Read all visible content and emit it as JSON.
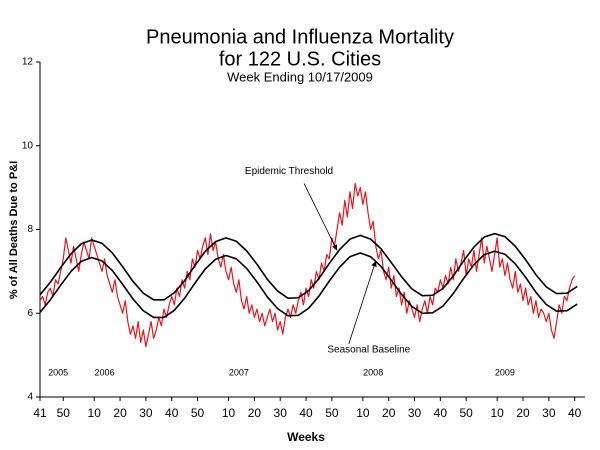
{
  "chart_data": {
    "type": "line",
    "title": [
      "Pneumonia and Influenza Mortality",
      "for 122 U.S. Cities"
    ],
    "subtitle": "Week Ending 10/17/2009",
    "y_label": "% of All Deaths Due to P&I",
    "x_label": "Weeks",
    "xlim": [
      0,
      211
    ],
    "ylim": [
      4,
      12
    ],
    "yticks": [
      4,
      6,
      8,
      10,
      12
    ],
    "xticks": [
      {
        "value": 0,
        "label": "41"
      },
      {
        "value": 9,
        "label": "50"
      },
      {
        "value": 21,
        "label": "10"
      },
      {
        "value": 31,
        "label": "20"
      },
      {
        "value": 41,
        "label": "30"
      },
      {
        "value": 51,
        "label": "40"
      },
      {
        "value": 61,
        "label": "50"
      },
      {
        "value": 73,
        "label": "10"
      },
      {
        "value": 83,
        "label": "20"
      },
      {
        "value": 93,
        "label": "30"
      },
      {
        "value": 103,
        "label": "40"
      },
      {
        "value": 113,
        "label": "50"
      },
      {
        "value": 125,
        "label": "10"
      },
      {
        "value": 135,
        "label": "20"
      },
      {
        "value": 145,
        "label": "30"
      },
      {
        "value": 155,
        "label": "40"
      },
      {
        "value": 165,
        "label": "50"
      },
      {
        "value": 177,
        "label": "10"
      },
      {
        "value": 187,
        "label": "20"
      },
      {
        "value": 197,
        "label": "30"
      },
      {
        "value": 207,
        "label": "40"
      }
    ],
    "year_labels": [
      {
        "text": "2005",
        "x": 7
      },
      {
        "text": "2006",
        "x": 25
      },
      {
        "text": "2007",
        "x": 77
      },
      {
        "text": "2008",
        "x": 129
      },
      {
        "text": "2009",
        "x": 180
      }
    ],
    "annotations": [
      {
        "text": "Epidemic Threshold",
        "x": 115,
        "y": 7.5,
        "side": "above"
      },
      {
        "text": "Seasonal Baseline",
        "x": 130,
        "y": 7.25,
        "side": "below"
      }
    ],
    "series": [
      {
        "color": "#e8141b",
        "x": [
          0,
          1,
          2,
          3,
          4,
          5,
          6,
          7,
          8,
          9,
          10,
          11,
          12,
          13,
          14,
          15,
          16,
          17,
          18,
          19,
          20,
          21,
          22,
          23,
          24,
          25,
          26,
          27,
          28,
          29,
          30,
          31,
          32,
          33,
          34,
          35,
          36,
          37,
          38,
          39,
          40,
          41,
          42,
          43,
          44,
          45,
          46,
          47,
          48,
          49,
          50,
          51,
          52,
          53,
          54,
          55,
          56,
          57,
          58,
          59,
          60,
          61,
          62,
          63,
          64,
          65,
          66,
          67,
          68,
          69,
          70,
          71,
          72,
          73,
          74,
          75,
          76,
          77,
          78,
          79,
          80,
          81,
          82,
          83,
          84,
          85,
          86,
          87,
          88,
          89,
          90,
          91,
          92,
          93,
          94,
          95,
          96,
          97,
          98,
          99,
          100,
          101,
          102,
          103,
          104,
          105,
          106,
          107,
          108,
          109,
          110,
          111,
          112,
          113,
          114,
          115,
          116,
          117,
          118,
          119,
          120,
          121,
          122,
          123,
          124,
          125,
          126,
          127,
          128,
          129,
          130,
          131,
          132,
          133,
          134,
          135,
          136,
          137,
          138,
          139,
          140,
          141,
          142,
          143,
          144,
          145,
          146,
          147,
          148,
          149,
          150,
          151,
          152,
          153,
          154,
          155,
          156,
          157,
          158,
          159,
          160,
          161,
          162,
          163,
          164,
          165,
          166,
          167,
          168,
          169,
          170,
          171,
          172,
          173,
          174,
          175,
          176,
          177,
          178,
          179,
          180,
          181,
          182,
          183,
          184,
          185,
          186,
          187,
          188,
          189,
          190,
          191,
          192,
          193,
          194,
          195,
          196,
          197,
          198,
          199,
          200,
          201,
          202,
          203,
          204,
          205,
          206,
          207
        ],
        "values": [
          6.3,
          6.4,
          6.2,
          6.5,
          6.6,
          6.4,
          6.8,
          6.7,
          7.0,
          7.3,
          7.8,
          7.5,
          7.2,
          7.6,
          7.3,
          7.0,
          7.4,
          7.7,
          7.5,
          7.3,
          7.8,
          7.6,
          7.4,
          7.2,
          7.0,
          7.3,
          6.9,
          6.7,
          6.5,
          6.8,
          6.4,
          6.2,
          6.0,
          6.3,
          5.8,
          5.5,
          5.7,
          5.4,
          5.8,
          5.3,
          5.6,
          5.2,
          5.5,
          5.8,
          5.4,
          5.6,
          5.9,
          5.7,
          6.1,
          5.9,
          6.2,
          6.4,
          6.2,
          6.6,
          6.4,
          6.8,
          6.6,
          7.0,
          6.8,
          7.3,
          7.1,
          7.5,
          7.3,
          7.6,
          7.8,
          7.4,
          7.9,
          7.5,
          7.7,
          7.3,
          7.1,
          7.4,
          7.0,
          6.8,
          7.1,
          6.7,
          6.5,
          6.8,
          6.3,
          6.1,
          6.4,
          6.0,
          6.2,
          5.9,
          6.1,
          5.8,
          6.0,
          5.7,
          5.9,
          6.1,
          5.8,
          6.0,
          5.6,
          5.8,
          5.5,
          5.9,
          6.1,
          5.9,
          6.2,
          6.0,
          6.3,
          6.5,
          6.2,
          6.6,
          6.4,
          6.8,
          6.6,
          7.0,
          6.8,
          7.2,
          7.0,
          7.4,
          7.3,
          7.8,
          7.6,
          8.0,
          8.4,
          8.1,
          8.7,
          8.3,
          8.9,
          8.5,
          9.1,
          8.8,
          9.0,
          8.6,
          8.9,
          8.4,
          8.0,
          8.2,
          7.6,
          7.3,
          7.5,
          7.0,
          6.8,
          7.1,
          6.6,
          6.9,
          6.4,
          6.6,
          6.2,
          6.5,
          6.0,
          6.3,
          6.1,
          5.9,
          6.2,
          5.8,
          6.1,
          6.3,
          6.0,
          6.4,
          6.2,
          6.6,
          6.5,
          6.8,
          6.6,
          6.9,
          6.7,
          7.1,
          6.8,
          7.3,
          7.0,
          7.2,
          7.5,
          6.9,
          7.3,
          7.1,
          7.5,
          7.0,
          7.4,
          7.8,
          7.2,
          7.6,
          7.3,
          7.0,
          7.4,
          7.8,
          7.1,
          7.3,
          6.9,
          7.2,
          6.8,
          6.6,
          7.0,
          6.5,
          6.7,
          6.3,
          6.6,
          6.2,
          6.4,
          6.0,
          6.3,
          5.9,
          6.1,
          6.0,
          5.8,
          6.0,
          5.6,
          5.4,
          5.8,
          6.2,
          6.0,
          6.4,
          6.3,
          6.6,
          6.8,
          6.9
        ]
      },
      {
        "color": "#000000",
        "x": [
          0,
          4,
          8,
          12,
          16,
          20,
          24,
          28,
          32,
          36,
          40,
          44,
          48,
          52,
          56,
          60,
          64,
          68,
          72,
          76,
          80,
          84,
          88,
          92,
          96,
          100,
          104,
          108,
          112,
          116,
          120,
          124,
          128,
          132,
          136,
          140,
          144,
          148,
          152,
          156,
          160,
          164,
          168,
          172,
          176,
          180,
          184,
          188,
          192,
          196,
          200,
          204,
          208
        ],
        "values": [
          6.44,
          6.74,
          7.09,
          7.42,
          7.66,
          7.75,
          7.67,
          7.44,
          7.11,
          6.76,
          6.48,
          6.32,
          6.32,
          6.49,
          6.78,
          7.14,
          7.48,
          7.71,
          7.8,
          7.72,
          7.49,
          7.17,
          6.81,
          6.53,
          6.36,
          6.37,
          6.54,
          6.83,
          7.19,
          7.52,
          7.77,
          7.86,
          7.77,
          7.54,
          7.21,
          6.87,
          6.58,
          6.42,
          6.43,
          6.59,
          6.89,
          7.25,
          7.58,
          7.82,
          7.9,
          7.83,
          7.6,
          7.28,
          6.92,
          6.63,
          6.47,
          6.48,
          6.64
        ]
      },
      {
        "color": "#000000",
        "x": [
          0,
          4,
          8,
          12,
          16,
          20,
          24,
          28,
          32,
          36,
          40,
          44,
          48,
          52,
          56,
          60,
          64,
          68,
          72,
          76,
          80,
          84,
          88,
          92,
          96,
          100,
          104,
          108,
          112,
          116,
          120,
          124,
          128,
          132,
          136,
          140,
          144,
          148,
          152,
          156,
          160,
          164,
          168,
          172,
          176,
          180,
          184,
          188,
          192,
          196,
          200,
          204,
          208
        ],
        "values": [
          6.02,
          6.32,
          6.67,
          7.0,
          7.24,
          7.33,
          7.25,
          7.02,
          6.69,
          6.34,
          6.06,
          5.9,
          5.9,
          6.07,
          6.36,
          6.72,
          7.06,
          7.29,
          7.38,
          7.3,
          7.07,
          6.75,
          6.39,
          6.11,
          5.94,
          5.95,
          6.12,
          6.41,
          6.77,
          7.1,
          7.35,
          7.44,
          7.35,
          7.12,
          6.79,
          6.45,
          6.16,
          6.0,
          6.01,
          6.17,
          6.47,
          6.83,
          7.16,
          7.4,
          7.48,
          7.41,
          7.18,
          6.86,
          6.5,
          6.21,
          6.05,
          6.06,
          6.22
        ]
      }
    ]
  }
}
